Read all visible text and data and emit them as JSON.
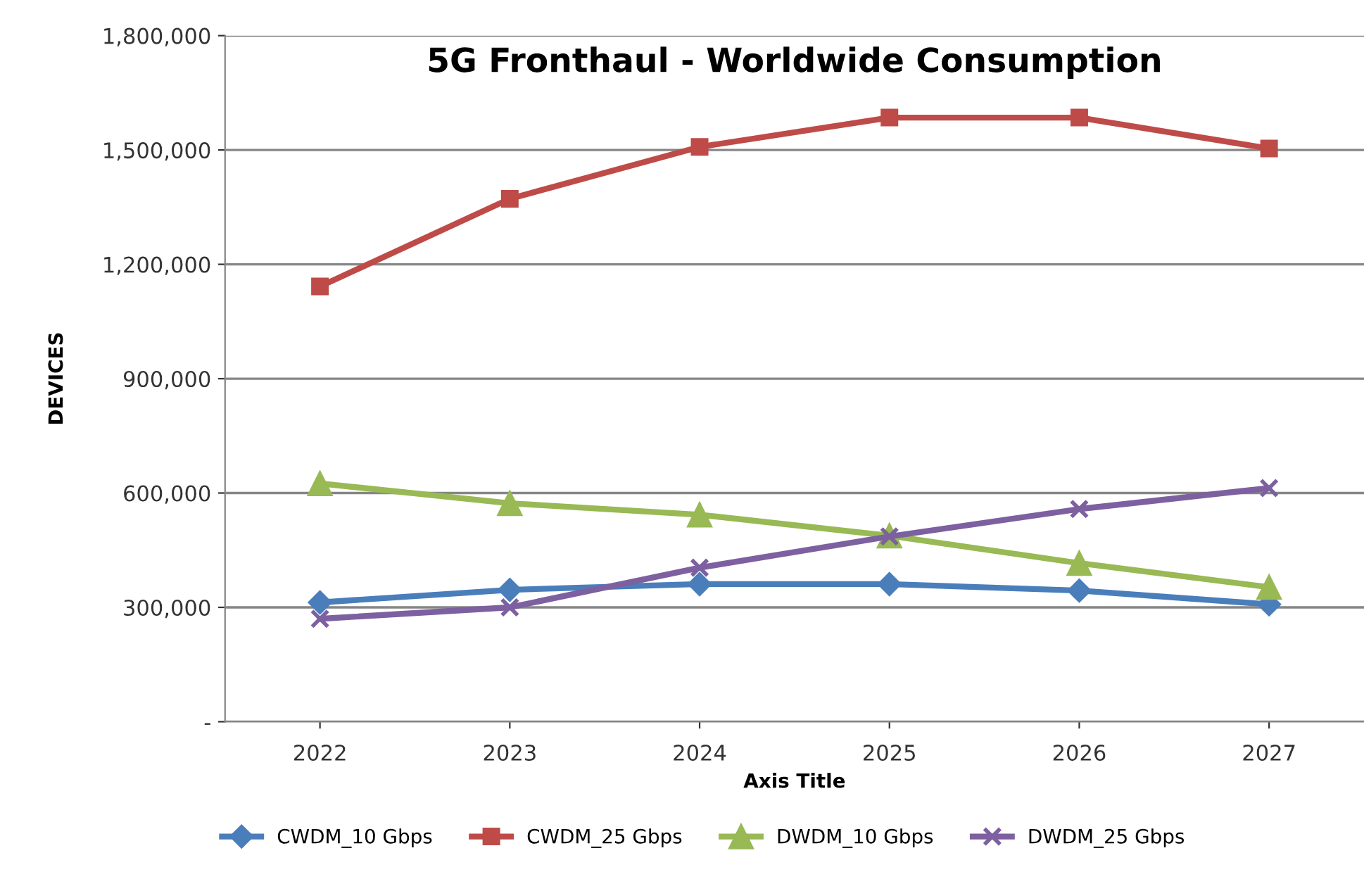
{
  "chart_data": {
    "type": "line",
    "title": "5G Fronthaul - Worldwide Consumption",
    "xlabel": "Axis Title",
    "ylabel": "DEVICES",
    "categories": [
      "2022",
      "2023",
      "2024",
      "2025",
      "2026",
      "2027"
    ],
    "series": [
      {
        "name": "CWDM_10 Gbps",
        "color": "#4a7ebb",
        "marker": "diamond",
        "values": [
          313000,
          346000,
          361000,
          361000,
          344000,
          308000
        ]
      },
      {
        "name": "CWDM_25 Gbps",
        "color": "#be4b48",
        "marker": "square",
        "values": [
          1142000,
          1372000,
          1508000,
          1585000,
          1585000,
          1504000
        ]
      },
      {
        "name": "DWDM_10 Gbps",
        "color": "#98b954",
        "marker": "triangle",
        "values": [
          625000,
          573000,
          543000,
          488000,
          416000,
          353000
        ]
      },
      {
        "name": "DWDM_25 Gbps",
        "color": "#7d60a0",
        "marker": "cross",
        "values": [
          270000,
          300000,
          404000,
          486000,
          558000,
          613000
        ]
      }
    ],
    "ylim": [
      0,
      1800000
    ],
    "yticks": [
      {
        "value": 0,
        "label": "-"
      },
      {
        "value": 300000,
        "label": "300,000"
      },
      {
        "value": 600000,
        "label": "600,000"
      },
      {
        "value": 900000,
        "label": "900,000"
      },
      {
        "value": 1200000,
        "label": "1,200,000"
      },
      {
        "value": 1500000,
        "label": "1,500,000"
      },
      {
        "value": 1800000,
        "label": "1,800,000"
      }
    ],
    "grid": "y",
    "legend": "bottom",
    "line_style": "solid"
  }
}
